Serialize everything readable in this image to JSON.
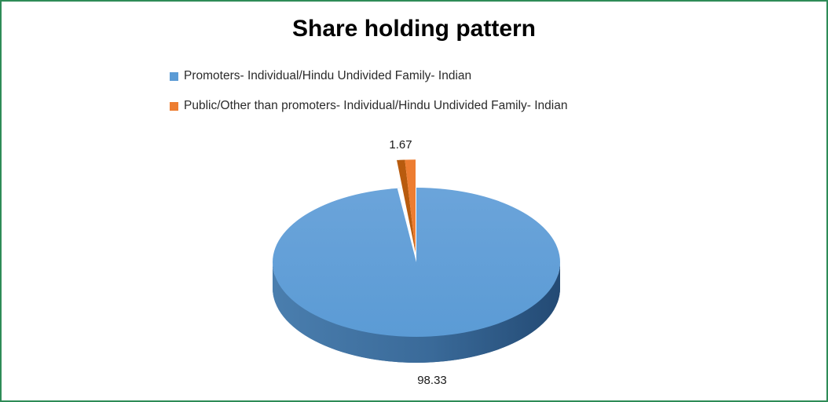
{
  "frame": {
    "border_color": "#2E8B57",
    "background": "#FFFFFF"
  },
  "chart_data": {
    "type": "pie",
    "title": "Share holding pattern",
    "categories": [
      "Promoters- Individual/Hindu Undivided Family- Indian",
      "Public/Other than promoters- Individual/Hindu Undivided Family- Indian"
    ],
    "values": [
      98.33,
      1.67
    ],
    "data_labels": [
      "98.33",
      "1.67"
    ],
    "colors": [
      "#5B9BD5",
      "#ED7D31"
    ],
    "unit": "percent",
    "effect": "3d",
    "legend_position": "top-left-stacked",
    "grid": false
  }
}
